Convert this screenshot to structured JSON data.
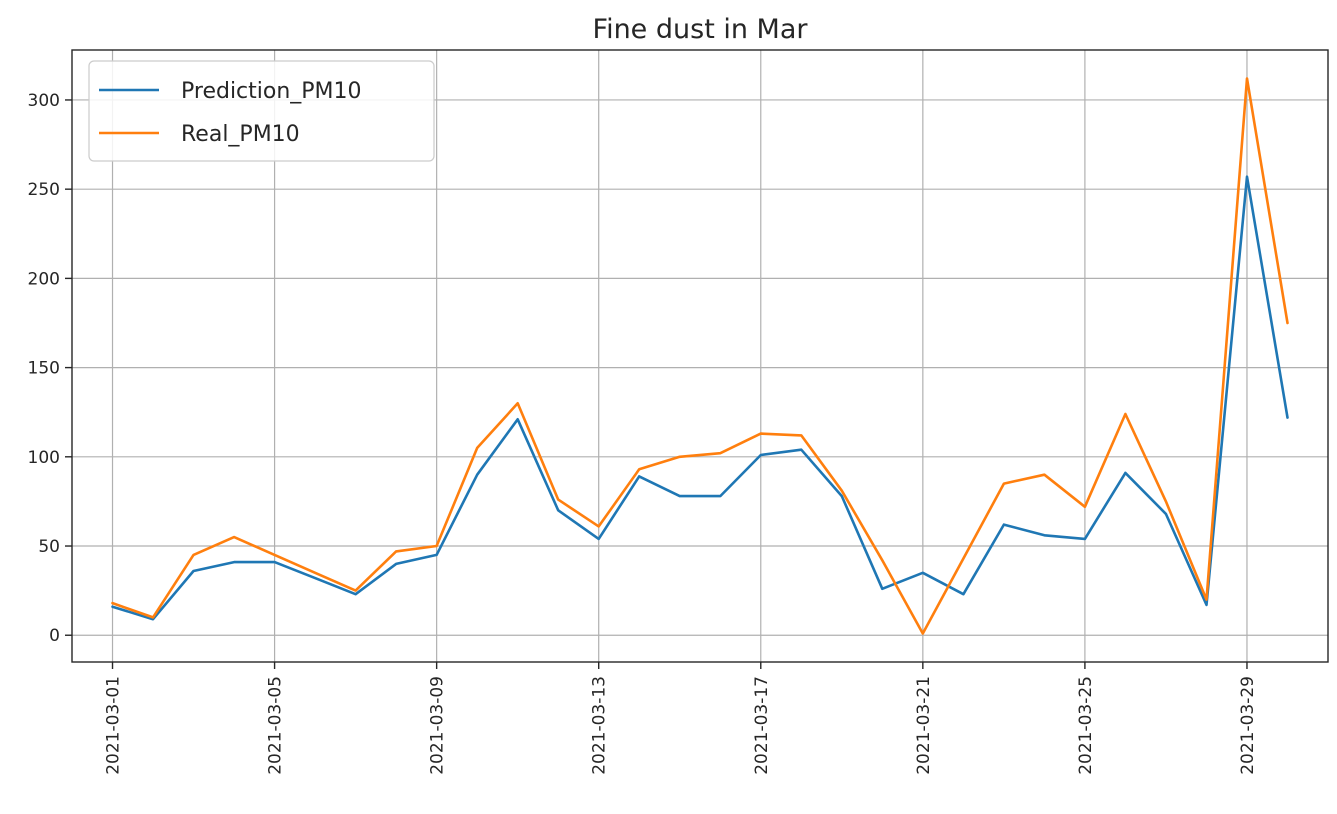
{
  "chart_data": {
    "type": "line",
    "title": "Fine dust in Mar",
    "xlabel": "",
    "ylabel": "",
    "x": [
      "2021-03-01",
      "2021-03-02",
      "2021-03-03",
      "2021-03-04",
      "2021-03-05",
      "2021-03-06",
      "2021-03-07",
      "2021-03-08",
      "2021-03-09",
      "2021-03-10",
      "2021-03-11",
      "2021-03-12",
      "2021-03-13",
      "2021-03-14",
      "2021-03-15",
      "2021-03-16",
      "2021-03-17",
      "2021-03-18",
      "2021-03-19",
      "2021-03-20",
      "2021-03-21",
      "2021-03-22",
      "2021-03-23",
      "2021-03-24",
      "2021-03-25",
      "2021-03-26",
      "2021-03-27",
      "2021-03-28",
      "2021-03-29",
      "2021-03-30"
    ],
    "x_ticks": [
      "2021-03-01",
      "2021-03-05",
      "2021-03-09",
      "2021-03-13",
      "2021-03-17",
      "2021-03-21",
      "2021-03-25",
      "2021-03-29"
    ],
    "y_ticks": [
      0,
      50,
      100,
      150,
      200,
      250,
      300
    ],
    "xlim": [
      "2021-02-28",
      "2021-03-31"
    ],
    "ylim": [
      -15,
      328
    ],
    "grid": true,
    "legend_position": "top-left",
    "series": [
      {
        "name": "Prediction_PM10",
        "color": "#1f77b4",
        "values": [
          16,
          9,
          36,
          41,
          41,
          32,
          23,
          40,
          45,
          90,
          121,
          70,
          54,
          89,
          78,
          78,
          101,
          104,
          78,
          26,
          35,
          23,
          62,
          56,
          54,
          91,
          68,
          17,
          257,
          122
        ]
      },
      {
        "name": "Real_PM10",
        "color": "#ff7f0e",
        "values": [
          18,
          10,
          45,
          55,
          45,
          35,
          25,
          47,
          50,
          105,
          130,
          76,
          61,
          93,
          100,
          102,
          113,
          112,
          81,
          42,
          1,
          43,
          85,
          90,
          72,
          124,
          75,
          20,
          312,
          175
        ]
      }
    ]
  }
}
